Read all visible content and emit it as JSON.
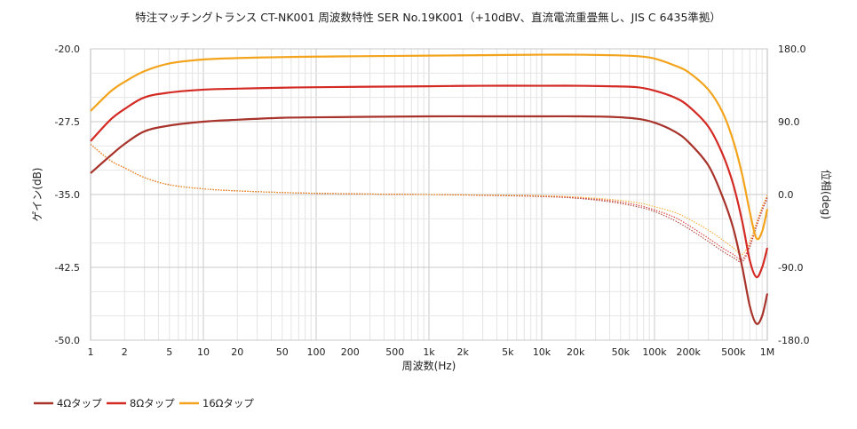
{
  "chart_data": {
    "type": "line",
    "title": "特注マッチングトランス CT-NK001 周波数特性 SER No.19K001（+10dBV、直流電流重畳無し、JIS C 6435準拠）",
    "xlabel": "周波数(Hz)",
    "ylabel": "ゲイン(dB)",
    "y2label": "位相(deg)",
    "xscale": "log",
    "xlim": [
      1,
      1000000
    ],
    "ylim": [
      -50,
      -20
    ],
    "y2lim": [
      -180,
      180
    ],
    "grid": true,
    "legend_position": "bottom-left",
    "x_ticks": [
      1,
      2,
      5,
      10,
      20,
      50,
      100,
      200,
      500,
      1000,
      2000,
      5000,
      10000,
      20000,
      50000,
      100000,
      200000,
      500000,
      1000000
    ],
    "x_tick_labels": [
      "1",
      "2",
      "5",
      "10",
      "20",
      "50",
      "100",
      "200",
      "500",
      "1k",
      "2k",
      "5k",
      "10k",
      "20k",
      "50k",
      "100k",
      "200k",
      "500k",
      "1M"
    ],
    "y_tick_labels": [
      "-20.0",
      "-27.5",
      "-35.0",
      "-42.5",
      "-50.0"
    ],
    "y2_tick_labels": [
      "180.0",
      "90.0",
      "0.0",
      "-90.0",
      "-180.0"
    ],
    "gain_x": [
      1,
      1.5,
      2,
      3,
      5,
      10,
      20,
      50,
      100,
      300,
      1000,
      3000,
      10000,
      20000,
      40000,
      70000,
      100000,
      150000,
      200000,
      300000,
      400000,
      500000,
      600000,
      700000,
      800000,
      900000,
      1000000
    ],
    "series": [
      {
        "name": "4Ωタップ",
        "color": "#a8332b",
        "axis": "gain",
        "values": [
          -32.8,
          -31.0,
          -29.8,
          -28.5,
          -27.9,
          -27.5,
          -27.3,
          -27.1,
          -27.05,
          -27.0,
          -26.95,
          -26.95,
          -26.95,
          -26.95,
          -27.0,
          -27.2,
          -27.6,
          -28.5,
          -29.6,
          -32.0,
          -35.2,
          -38.5,
          -42.5,
          -46.5,
          -48.3,
          -47.5,
          -45.2
        ]
      },
      {
        "name": "8Ωタップ",
        "color": "#d42a24",
        "axis": "gain",
        "values": [
          -29.5,
          -27.3,
          -26.2,
          -25.0,
          -24.5,
          -24.2,
          -24.1,
          -24.0,
          -23.95,
          -23.9,
          -23.85,
          -23.8,
          -23.8,
          -23.8,
          -23.85,
          -23.95,
          -24.3,
          -25.0,
          -25.9,
          -28.0,
          -30.8,
          -34.0,
          -37.8,
          -41.8,
          -43.5,
          -42.5,
          -40.5
        ]
      },
      {
        "name": "16Ωタップ",
        "color": "#f3a41c",
        "axis": "gain",
        "values": [
          -26.4,
          -24.4,
          -23.4,
          -22.3,
          -21.5,
          -21.1,
          -20.95,
          -20.85,
          -20.8,
          -20.75,
          -20.7,
          -20.65,
          -20.6,
          -20.6,
          -20.65,
          -20.75,
          -21.0,
          -21.7,
          -22.4,
          -24.2,
          -26.5,
          -29.5,
          -33.0,
          -36.8,
          -39.5,
          -38.8,
          -36.5
        ]
      }
    ],
    "phase_x": [
      1,
      1.5,
      2,
      3,
      5,
      10,
      20,
      50,
      100,
      300,
      1000,
      3000,
      10000,
      20000,
      40000,
      70000,
      100000,
      150000,
      200000,
      300000,
      400000,
      500000,
      600000,
      700000,
      800000,
      900000,
      1000000
    ],
    "phase_series": [
      {
        "name": "4Ωタップ",
        "color": "#a8332b",
        "axis": "phase",
        "values": [
          62,
          42,
          33,
          21,
          12,
          7,
          4.5,
          2.5,
          1.5,
          0.6,
          0,
          -1,
          -2.5,
          -4.5,
          -9,
          -15,
          -21,
          -32,
          -42,
          -58,
          -70,
          -78,
          -83,
          -65,
          -40,
          -20,
          -5
        ]
      },
      {
        "name": "8Ωタップ",
        "color": "#d42a24",
        "axis": "phase",
        "values": [
          62,
          42,
          33,
          21,
          12,
          7,
          4.5,
          2.5,
          1.5,
          0.6,
          0,
          -0.8,
          -2,
          -4,
          -7.5,
          -13,
          -19,
          -28,
          -38,
          -54,
          -66,
          -74,
          -80,
          -62,
          -38,
          -18,
          -3
        ]
      },
      {
        "name": "16Ωタップ",
        "color": "#f3a41c",
        "axis": "phase",
        "values": [
          62,
          42,
          33,
          21,
          12,
          7,
          4.5,
          2.5,
          1.5,
          0.6,
          0,
          -0.6,
          -1.5,
          -3,
          -6,
          -10,
          -15,
          -22,
          -30,
          -44,
          -56,
          -66,
          -74,
          -58,
          -35,
          -15,
          0
        ]
      }
    ]
  }
}
